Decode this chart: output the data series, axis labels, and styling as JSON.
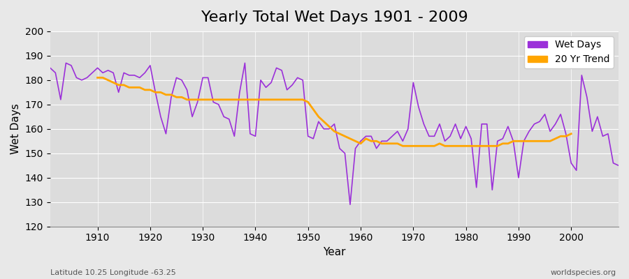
{
  "title": "Yearly Total Wet Days 1901 - 2009",
  "xlabel": "Year",
  "ylabel": "Wet Days",
  "subtitle": "Latitude 10.25 Longitude -63.25",
  "watermark": "worldspecies.org",
  "years": [
    1901,
    1902,
    1903,
    1904,
    1905,
    1906,
    1907,
    1908,
    1909,
    1910,
    1911,
    1912,
    1913,
    1914,
    1915,
    1916,
    1917,
    1918,
    1919,
    1920,
    1921,
    1922,
    1923,
    1924,
    1925,
    1926,
    1927,
    1928,
    1929,
    1930,
    1931,
    1932,
    1933,
    1934,
    1935,
    1936,
    1937,
    1938,
    1939,
    1940,
    1941,
    1942,
    1943,
    1944,
    1945,
    1946,
    1947,
    1948,
    1949,
    1950,
    1951,
    1952,
    1953,
    1954,
    1955,
    1956,
    1957,
    1958,
    1959,
    1960,
    1961,
    1962,
    1963,
    1964,
    1965,
    1966,
    1967,
    1968,
    1969,
    1970,
    1971,
    1972,
    1973,
    1974,
    1975,
    1976,
    1977,
    1978,
    1979,
    1980,
    1981,
    1982,
    1983,
    1984,
    1985,
    1986,
    1987,
    1988,
    1989,
    1990,
    1991,
    1992,
    1993,
    1994,
    1995,
    1996,
    1997,
    1998,
    1999,
    2000,
    2001,
    2002,
    2003,
    2004,
    2005,
    2006,
    2007,
    2008,
    2009
  ],
  "wet_days": [
    185,
    183,
    172,
    187,
    186,
    181,
    180,
    181,
    183,
    185,
    183,
    184,
    183,
    175,
    183,
    182,
    182,
    181,
    183,
    186,
    175,
    165,
    158,
    173,
    181,
    180,
    176,
    165,
    171,
    181,
    181,
    171,
    170,
    165,
    164,
    157,
    175,
    187,
    158,
    157,
    180,
    177,
    179,
    185,
    184,
    176,
    178,
    181,
    180,
    157,
    156,
    163,
    160,
    160,
    162,
    152,
    150,
    129,
    152,
    155,
    157,
    157,
    152,
    155,
    155,
    157,
    159,
    155,
    160,
    179,
    169,
    162,
    157,
    157,
    162,
    155,
    157,
    162,
    156,
    161,
    156,
    136,
    162,
    162,
    135,
    155,
    156,
    161,
    155,
    140,
    155,
    159,
    162,
    163,
    166,
    159,
    162,
    166,
    158,
    146,
    143,
    182,
    173,
    159,
    165,
    157,
    158,
    146,
    145
  ],
  "trend_years": [
    1910,
    1911,
    1912,
    1913,
    1914,
    1915,
    1916,
    1917,
    1918,
    1919,
    1920,
    1921,
    1922,
    1923,
    1924,
    1925,
    1926,
    1927,
    1928,
    1929,
    1930,
    1931,
    1932,
    1933,
    1934,
    1935,
    1936,
    1937,
    1938,
    1939,
    1940,
    1941,
    1942,
    1943,
    1944,
    1945,
    1946,
    1947,
    1948,
    1949,
    1950,
    1951,
    1952,
    1953,
    1954,
    1955,
    1956,
    1957,
    1958,
    1959,
    1960,
    1961,
    1962,
    1963,
    1964,
    1965,
    1966,
    1967,
    1968,
    1969,
    1970,
    1971,
    1972,
    1973,
    1974,
    1975,
    1976,
    1977,
    1978,
    1979,
    1980,
    1981,
    1982,
    1983,
    1984,
    1985,
    1986,
    1987,
    1988,
    1989,
    1990,
    1991,
    1992,
    1993,
    1994,
    1995,
    1996,
    1997,
    1998,
    1999,
    2000
  ],
  "trend_values": [
    181,
    181,
    180,
    179,
    178,
    178,
    177,
    177,
    177,
    176,
    176,
    175,
    175,
    174,
    174,
    173,
    173,
    172,
    172,
    172,
    172,
    172,
    172,
    172,
    172,
    172,
    172,
    172,
    172,
    172,
    172,
    172,
    172,
    172,
    172,
    172,
    172,
    172,
    172,
    172,
    171,
    168,
    165,
    163,
    161,
    159,
    158,
    157,
    156,
    155,
    154,
    156,
    155,
    155,
    154,
    154,
    154,
    154,
    153,
    153,
    153,
    153,
    153,
    153,
    153,
    154,
    153,
    153,
    153,
    153,
    153,
    153,
    153,
    153,
    153,
    153,
    153,
    154,
    154,
    155,
    155,
    155,
    155,
    155,
    155,
    155,
    155,
    156,
    157,
    157,
    158
  ],
  "wet_days_color": "#9B30D9",
  "trend_color": "#FFA500",
  "background_color": "#E8E8E8",
  "plot_bg_color": "#DCDCDC",
  "ylim": [
    120,
    200
  ],
  "xlim": [
    1901,
    2009
  ],
  "yticks": [
    120,
    130,
    140,
    150,
    160,
    170,
    180,
    190,
    200
  ],
  "xticks": [
    1910,
    1920,
    1930,
    1940,
    1950,
    1960,
    1970,
    1980,
    1990,
    2000
  ],
  "title_fontsize": 16,
  "label_fontsize": 11,
  "tick_fontsize": 10,
  "legend_fontsize": 10
}
